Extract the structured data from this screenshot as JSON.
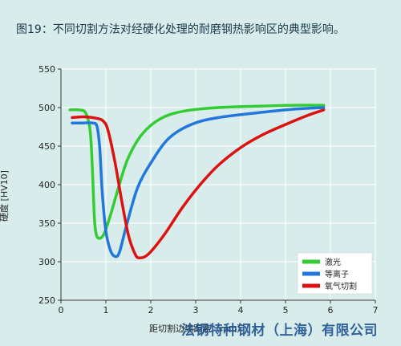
{
  "chart_data": {
    "type": "line",
    "title": "图19：不同切割方法对经硬化处理的耐磨钢热影响区的典型影响。",
    "xlabel": "距切割边缘距离（mm）",
    "ylabel": "硬度 [HV10]",
    "xlim": [
      0,
      7
    ],
    "ylim": [
      250,
      550
    ],
    "xticks": [
      0,
      1,
      2,
      3,
      4,
      5,
      6,
      7
    ],
    "yticks": [
      250,
      300,
      350,
      400,
      450,
      500,
      550
    ],
    "grid": true,
    "legend_position": "bottom-right",
    "series": [
      {
        "name": "激光",
        "color": "#33cc33",
        "points": [
          [
            0.2,
            497
          ],
          [
            0.4,
            497
          ],
          [
            0.55,
            493
          ],
          [
            0.65,
            470
          ],
          [
            0.7,
            420
          ],
          [
            0.73,
            375
          ],
          [
            0.76,
            345
          ],
          [
            0.82,
            331
          ],
          [
            0.95,
            335
          ],
          [
            1.1,
            360
          ],
          [
            1.3,
            400
          ],
          [
            1.5,
            435
          ],
          [
            1.8,
            465
          ],
          [
            2.2,
            485
          ],
          [
            2.7,
            495
          ],
          [
            3.5,
            500
          ],
          [
            4.5,
            502
          ],
          [
            5.2,
            503
          ],
          [
            5.85,
            503
          ]
        ]
      },
      {
        "name": "等离子",
        "color": "#2277dd",
        "points": [
          [
            0.25,
            480
          ],
          [
            0.5,
            480
          ],
          [
            0.7,
            480
          ],
          [
            0.8,
            476
          ],
          [
            0.86,
            450
          ],
          [
            0.92,
            390
          ],
          [
            1.0,
            340
          ],
          [
            1.1,
            315
          ],
          [
            1.2,
            307
          ],
          [
            1.3,
            312
          ],
          [
            1.45,
            345
          ],
          [
            1.7,
            395
          ],
          [
            2.0,
            428
          ],
          [
            2.4,
            460
          ],
          [
            2.9,
            478
          ],
          [
            3.5,
            487
          ],
          [
            4.5,
            494
          ],
          [
            5.2,
            498
          ],
          [
            5.85,
            500
          ]
        ]
      },
      {
        "name": "氧气切割",
        "color": "#dd1111",
        "points": [
          [
            0.25,
            487
          ],
          [
            0.5,
            488
          ],
          [
            0.8,
            486
          ],
          [
            0.95,
            482
          ],
          [
            1.05,
            470
          ],
          [
            1.2,
            430
          ],
          [
            1.35,
            380
          ],
          [
            1.5,
            335
          ],
          [
            1.65,
            310
          ],
          [
            1.75,
            305
          ],
          [
            1.95,
            310
          ],
          [
            2.3,
            335
          ],
          [
            2.7,
            370
          ],
          [
            3.1,
            400
          ],
          [
            3.5,
            425
          ],
          [
            4.0,
            448
          ],
          [
            4.5,
            465
          ],
          [
            5.0,
            478
          ],
          [
            5.5,
            490
          ],
          [
            5.85,
            497
          ]
        ]
      }
    ]
  },
  "watermark": "法钢特种钢材（上海）有限公司"
}
